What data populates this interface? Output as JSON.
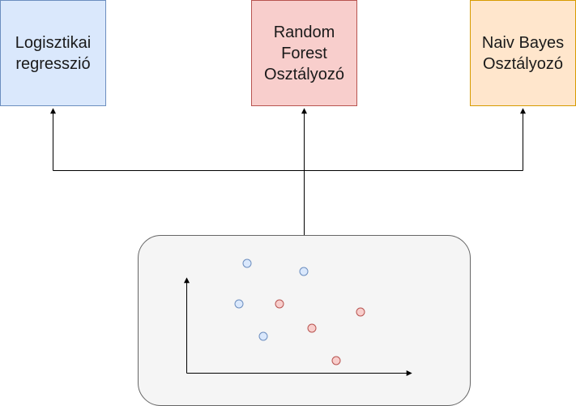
{
  "models": [
    {
      "label": "Logisztikai\nregresszió",
      "fill": "#dae8fc",
      "stroke": "#6c8ebf"
    },
    {
      "label": "Random\nForest\nOsztályozó",
      "fill": "#f8cecc",
      "stroke": "#b85450"
    },
    {
      "label": "Naiv Bayes\nOsztályozó",
      "fill": "#ffe6cc",
      "stroke": "#d79b00"
    }
  ],
  "dataset_panel": {
    "fill": "#f5f5f5",
    "stroke": "#666666"
  },
  "colors": {
    "class_a": "#dae8fc",
    "class_a_stroke": "#6c8ebf",
    "class_b": "#f8cecc",
    "class_b_stroke": "#b85450",
    "arrow": "#000000"
  }
}
